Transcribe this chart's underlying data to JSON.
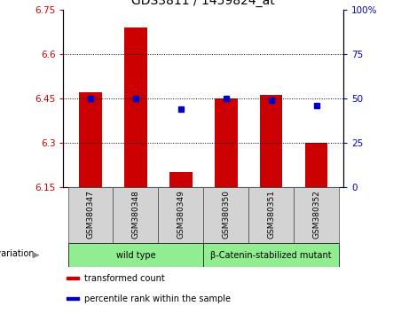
{
  "title": "GDS3811 / 1459824_at",
  "samples": [
    "GSM380347",
    "GSM380348",
    "GSM380349",
    "GSM380350",
    "GSM380351",
    "GSM380352"
  ],
  "bar_values": [
    6.47,
    6.69,
    6.2,
    6.45,
    6.46,
    6.3
  ],
  "blue_values": [
    50.0,
    50.0,
    44.0,
    50.0,
    49.0,
    46.0
  ],
  "bar_color": "#cc0000",
  "blue_color": "#0000cc",
  "ylim_left": [
    6.15,
    6.75
  ],
  "ylim_right": [
    0,
    100
  ],
  "yticks_left": [
    6.15,
    6.3,
    6.45,
    6.6,
    6.75
  ],
  "yticks_right": [
    0,
    25,
    50,
    75,
    100
  ],
  "ytick_labels_left": [
    "6.15",
    "6.3",
    "6.45",
    "6.6",
    "6.75"
  ],
  "ytick_labels_right": [
    "0",
    "25",
    "50",
    "75",
    "100%"
  ],
  "groups": [
    {
      "label": "wild type",
      "indices": [
        0,
        1,
        2
      ]
    },
    {
      "label": "β-Catenin-stabilized mutant",
      "indices": [
        3,
        4,
        5
      ]
    }
  ],
  "group_colors": [
    "#90ee90",
    "#90ee90"
  ],
  "legend_items": [
    {
      "label": "transformed count",
      "color": "#cc0000"
    },
    {
      "label": "percentile rank within the sample",
      "color": "#0000cc"
    }
  ],
  "bar_width": 0.5,
  "ybase": 6.15,
  "plot_bg": "#ffffff",
  "title_fontsize": 10,
  "tick_fontsize": 7.5,
  "sample_fontsize": 6.5,
  "group_fontsize": 7,
  "legend_fontsize": 7,
  "geno_fontsize": 7
}
